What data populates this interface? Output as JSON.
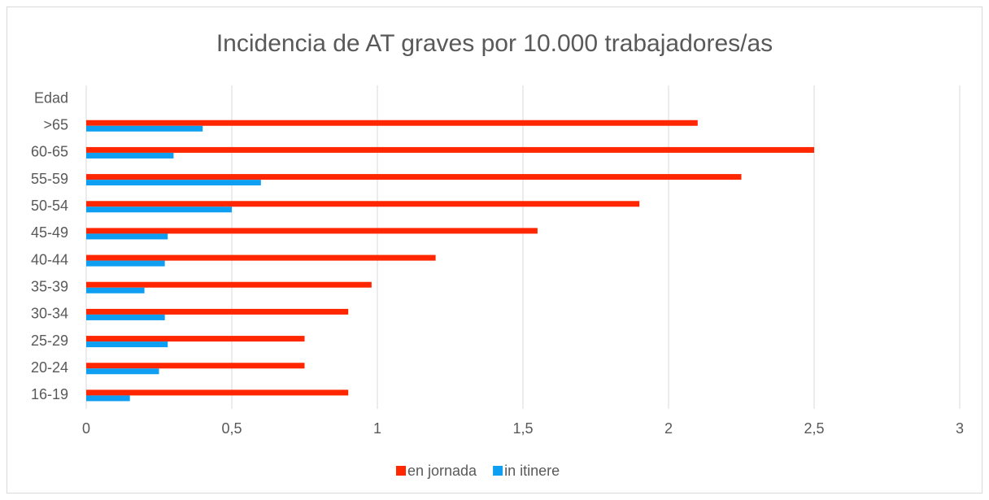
{
  "chart_data": {
    "type": "bar",
    "orientation": "horizontal",
    "title": "Incidencia de AT graves por 10.000 trabajadores/as",
    "categories": [
      "Edad",
      ">65",
      "60-65",
      "55-59",
      "50-54",
      "45-49",
      "40-44",
      "35-39",
      "30-34",
      "25-29",
      "20-24",
      "16-19"
    ],
    "series": [
      {
        "name": "en jornada",
        "color": "#ff2600",
        "values": [
          null,
          2.1,
          2.5,
          2.25,
          1.9,
          1.55,
          1.2,
          0.98,
          0.9,
          0.75,
          0.75,
          0.9
        ]
      },
      {
        "name": "in itinere",
        "color": "#0f9ff2",
        "values": [
          null,
          0.4,
          0.3,
          0.6,
          0.5,
          0.28,
          0.27,
          0.2,
          0.27,
          0.28,
          0.25,
          0.15
        ]
      }
    ],
    "xlim": [
      0,
      3
    ],
    "xticks": [
      0,
      {
        "value": 0.5,
        "label": "0,5"
      },
      1,
      {
        "value": 1.5,
        "label": "1,5"
      },
      2,
      {
        "value": 2.5,
        "label": "2,5"
      },
      3
    ],
    "grid": true,
    "legend": "bottom"
  }
}
